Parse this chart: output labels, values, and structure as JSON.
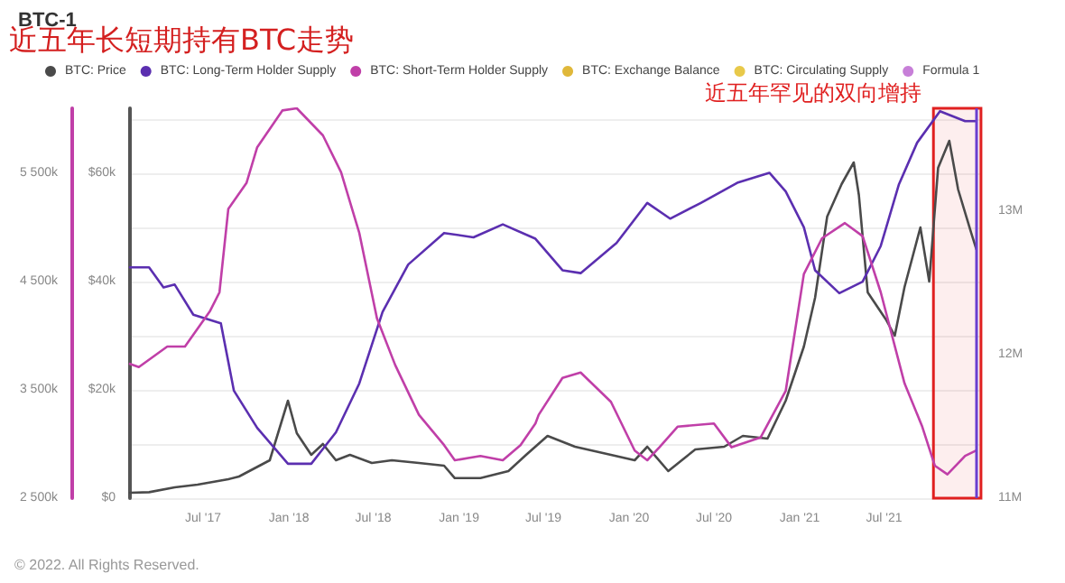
{
  "chart_data": {
    "type": "line",
    "title": "BTC-1",
    "subtitle": "近五年长短期持有BTC走势",
    "annotations": [
      "© 2022. All Rights Reserved."
    ],
    "legend": "top",
    "grid": "y",
    "marker": "none",
    "line_style": "solid",
    "xlim": [
      "2017-01-25",
      "2022-01-31"
    ],
    "xticks": [
      {
        "value": "2017-07-01",
        "label": "Jul '17"
      },
      {
        "value": "2018-01-01",
        "label": "Jan '18"
      },
      {
        "value": "2018-07-01",
        "label": "Jul '18"
      },
      {
        "value": "2019-01-01",
        "label": "Jan '19"
      },
      {
        "value": "2019-07-01",
        "label": "Jul '19"
      },
      {
        "value": "2020-01-01",
        "label": "Jan '20"
      },
      {
        "value": "2020-07-01",
        "label": "Jul '20"
      },
      {
        "value": "2021-01-01",
        "label": "Jan '21"
      },
      {
        "value": "2021-07-01",
        "label": "Jul '21"
      }
    ],
    "ylim": [
      0,
      72000
    ],
    "yticks": [
      {
        "value": 0,
        "label": "$0"
      },
      {
        "value": 10000,
        "label": null
      },
      {
        "value": 20000,
        "label": "$20k"
      },
      {
        "value": 30000,
        "label": null
      },
      {
        "value": 40000,
        "label": "$40k"
      },
      {
        "value": 50000,
        "label": null
      },
      {
        "value": 60000,
        "label": "$60k"
      },
      {
        "value": 70000,
        "label": null
      }
    ],
    "y2lim": [
      2500,
      6100
    ],
    "y2ticks": [
      {
        "value": 2500,
        "label": "2 500k"
      },
      {
        "value": 3500,
        "label": "3 500k"
      },
      {
        "value": 4500,
        "label": "4 500k"
      },
      {
        "value": 5500,
        "label": "5 500k"
      }
    ],
    "y3lim": [
      11,
      13.72
    ],
    "y3ticks": [
      {
        "value": 11,
        "label": "11M"
      },
      {
        "value": 12,
        "label": "12M"
      },
      {
        "value": 13,
        "label": "13M"
      }
    ],
    "bands": [
      {
        "axis": "x",
        "from": "2021-10-15",
        "to": "2022-01-25",
        "label": "近五年罕见的双向增持",
        "color": "#e02020"
      }
    ],
    "ref_lines": [
      {
        "axis": "x",
        "value": "2022-01-15",
        "color": "#6a3fd0"
      }
    ],
    "series": [
      {
        "name": "BTC: Price",
        "color": "#4a4a4a",
        "axis": "y",
        "x": [
          "2017-01-25",
          "2017-03-07",
          "2017-05-01",
          "2017-06-19",
          "2017-08-24",
          "2017-09-16",
          "2017-11-21",
          "2017-12-30",
          "2018-01-18",
          "2018-02-18",
          "2018-03-15",
          "2018-04-12",
          "2018-05-12",
          "2018-06-28",
          "2018-08-10",
          "2018-10-07",
          "2018-11-30",
          "2018-12-23",
          "2019-02-16",
          "2019-04-17",
          "2019-05-25",
          "2019-07-10",
          "2019-09-07",
          "2019-11-23",
          "2020-01-13",
          "2020-02-09",
          "2020-03-25",
          "2020-05-22",
          "2020-07-23",
          "2020-09-01",
          "2020-10-24",
          "2020-12-02",
          "2021-01-10",
          "2021-02-03",
          "2021-03-01",
          "2021-04-01",
          "2021-04-27",
          "2021-05-08",
          "2021-05-27",
          "2021-07-05",
          "2021-07-24",
          "2021-08-14",
          "2021-09-17",
          "2021-10-06",
          "2021-10-25",
          "2021-11-18",
          "2021-12-07",
          "2022-01-04",
          "2022-01-15"
        ],
        "values": [
          1000,
          1100,
          2000,
          2500,
          3500,
          4000,
          7000,
          18000,
          12000,
          8000,
          10000,
          7000,
          8000,
          6500,
          7000,
          6500,
          6000,
          3700,
          3700,
          5000,
          8000,
          11500,
          9500,
          8000,
          7000,
          9500,
          5000,
          9000,
          9500,
          11500,
          11000,
          18000,
          28000,
          37000,
          52000,
          58000,
          62000,
          56000,
          38000,
          33000,
          30000,
          39000,
          50000,
          40000,
          61000,
          66000,
          57000,
          49000,
          46000
        ]
      },
      {
        "name": "BTC: Long-Term Holder Supply",
        "color": "#5b2fb0",
        "axis": "y3",
        "x": [
          "2017-01-25",
          "2017-03-07",
          "2017-04-07",
          "2017-05-01",
          "2017-06-10",
          "2017-08-08",
          "2017-09-05",
          "2017-10-25",
          "2017-12-30",
          "2018-02-18",
          "2018-04-12",
          "2018-06-01",
          "2018-07-21",
          "2018-09-14",
          "2018-11-30",
          "2019-02-01",
          "2019-04-05",
          "2019-06-14",
          "2019-08-11",
          "2019-09-19",
          "2019-12-05",
          "2020-02-09",
          "2020-03-29",
          "2020-06-03",
          "2020-08-20",
          "2020-10-28",
          "2020-12-02",
          "2021-01-10",
          "2021-02-03",
          "2021-03-27",
          "2021-05-16",
          "2021-06-24",
          "2021-08-02",
          "2021-09-10",
          "2021-10-29",
          "2021-12-22",
          "2022-01-15"
        ],
        "values": [
          12.61,
          12.61,
          12.47,
          12.49,
          12.28,
          12.22,
          11.75,
          11.49,
          11.24,
          11.24,
          11.46,
          11.8,
          12.3,
          12.63,
          12.85,
          12.82,
          12.91,
          12.81,
          12.59,
          12.57,
          12.78,
          13.06,
          12.95,
          13.06,
          13.2,
          13.27,
          13.14,
          12.89,
          12.59,
          12.43,
          12.51,
          12.76,
          13.19,
          13.48,
          13.7,
          13.63,
          13.63
        ]
      },
      {
        "name": "BTC: Short-Term Holder Supply",
        "color": "#c03fa8",
        "axis": "y2",
        "x": [
          "2017-01-25",
          "2017-02-13",
          "2017-04-15",
          "2017-05-23",
          "2017-07-16",
          "2017-08-05",
          "2017-08-24",
          "2017-10-02",
          "2017-10-25",
          "2017-12-18",
          "2018-01-18",
          "2018-03-15",
          "2018-04-23",
          "2018-06-01",
          "2018-07-09",
          "2018-08-17",
          "2018-10-07",
          "2018-11-30",
          "2018-12-23",
          "2019-02-16",
          "2019-04-05",
          "2019-05-13",
          "2019-06-14",
          "2019-06-21",
          "2019-08-11",
          "2019-09-19",
          "2019-11-23",
          "2020-01-13",
          "2020-02-09",
          "2020-03-06",
          "2020-04-14",
          "2020-07-01",
          "2020-08-08",
          "2020-10-09",
          "2020-12-02",
          "2021-01-10",
          "2021-02-18",
          "2021-04-08",
          "2021-05-16",
          "2021-06-24",
          "2021-08-14",
          "2021-09-21",
          "2021-10-18",
          "2021-11-14",
          "2021-12-22",
          "2022-01-15"
        ],
        "values": [
          3740,
          3710,
          3900,
          3900,
          4230,
          4400,
          5170,
          5410,
          5740,
          6080,
          6100,
          5850,
          5510,
          4950,
          4160,
          3730,
          3270,
          2990,
          2850,
          2890,
          2850,
          2990,
          3190,
          3270,
          3610,
          3660,
          3390,
          2940,
          2850,
          2970,
          3160,
          3190,
          2970,
          3060,
          3490,
          4570,
          4900,
          5040,
          4920,
          4400,
          3560,
          3160,
          2800,
          2720,
          2890,
          2940
        ]
      },
      {
        "name": "BTC: Exchange Balance",
        "color": "#e0b83a"
      },
      {
        "name": "BTC: Circulating Supply",
        "color": "#e8c94a"
      },
      {
        "name": "Formula 1",
        "color": "#c77fd8"
      }
    ]
  }
}
